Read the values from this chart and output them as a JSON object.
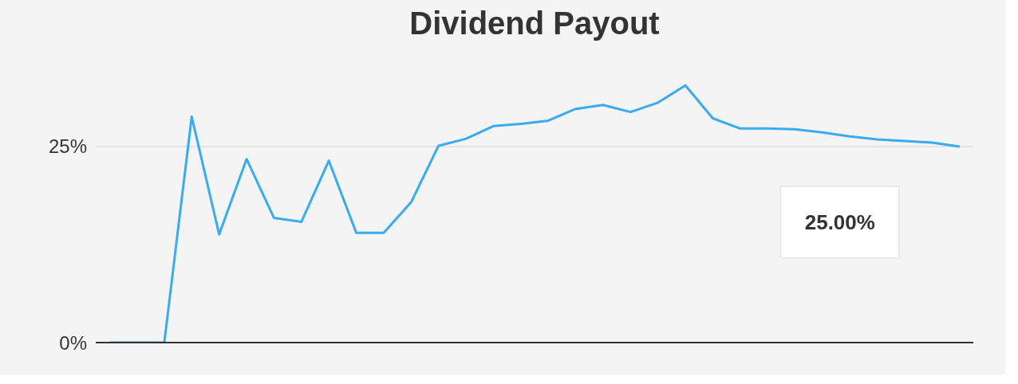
{
  "chart_data": {
    "type": "line",
    "title": "Dividend Payout",
    "categories": [
      null,
      null,
      null,
      null,
      null,
      null,
      null,
      null,
      null,
      null,
      null,
      null,
      null,
      null,
      null,
      null,
      null,
      null,
      null,
      null,
      null,
      null,
      null,
      null,
      null,
      null,
      null,
      null,
      null,
      null,
      null,
      null
    ],
    "series": [
      {
        "color": "#3aabf0",
        "values": [
          0,
          0,
          0,
          28.8,
          13.8,
          23.4,
          15.9,
          15.4,
          23.2,
          14.0,
          14.0,
          17.9,
          25.1,
          26.0,
          27.6,
          27.9,
          28.3,
          29.8,
          30.3,
          29.4,
          30.6,
          32.8,
          28.6,
          27.3,
          27.3,
          27.2,
          26.8,
          26.3,
          25.9,
          25.7,
          25.5,
          25.0
        ]
      }
    ],
    "ylim": [
      0,
      38
    ],
    "yticks": [
      {
        "value": 0,
        "label": "0%"
      },
      {
        "value": 25,
        "label": "25%"
      }
    ],
    "grid": "y",
    "tick_labels": "y",
    "marker": "none",
    "line_style": "solid",
    "annotations": [
      "25.00%"
    ]
  }
}
